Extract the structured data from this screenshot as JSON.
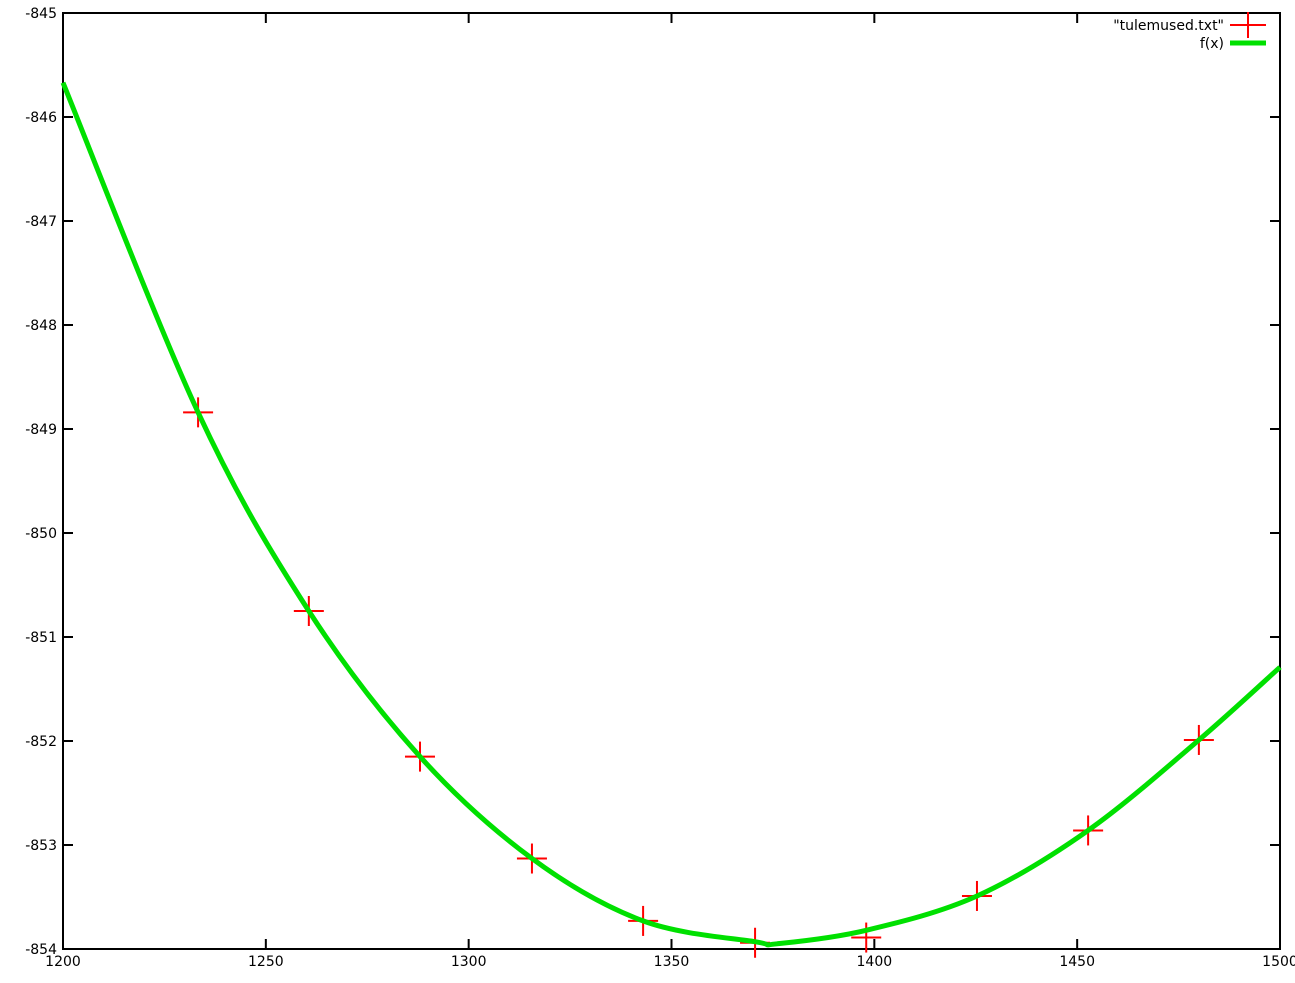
{
  "page": {
    "background": "#ffffff",
    "axis_color": "#000000"
  },
  "chart_data": {
    "type": "scatter",
    "title": "",
    "xlabel": "",
    "ylabel": "",
    "xlim": [
      1200,
      1500
    ],
    "ylim": [
      -854,
      -845
    ],
    "x_ticks": [
      1200,
      1250,
      1300,
      1350,
      1400,
      1450,
      1500
    ],
    "y_ticks": [
      -845,
      -846,
      -847,
      -848,
      -849,
      -850,
      -851,
      -852,
      -853,
      -854
    ],
    "grid": false,
    "legend_position": "top-right-inside",
    "series": [
      {
        "name": "\"tulemused.txt\"",
        "style": "points",
        "marker": "plus",
        "color": "#ff0000",
        "points": [
          [
            1233.3,
            -848.84
          ],
          [
            1260.6,
            -850.75
          ],
          [
            1288.0,
            -852.15
          ],
          [
            1315.6,
            -853.13
          ],
          [
            1343.0,
            -853.73
          ],
          [
            1370.6,
            -853.94
          ],
          [
            1398.0,
            -853.89
          ],
          [
            1425.3,
            -853.49
          ],
          [
            1452.7,
            -852.86
          ],
          [
            1480.0,
            -851.99
          ]
        ]
      },
      {
        "name": "f(x)",
        "style": "line",
        "color": "#00e000",
        "points": [
          [
            1200.0,
            -845.67
          ],
          [
            1233.3,
            -848.84
          ],
          [
            1260.6,
            -850.75
          ],
          [
            1288.0,
            -852.15
          ],
          [
            1315.6,
            -853.13
          ],
          [
            1343.0,
            -853.73
          ],
          [
            1370.6,
            -853.93
          ],
          [
            1376.0,
            -853.95
          ],
          [
            1398.0,
            -853.82
          ],
          [
            1425.3,
            -853.49
          ],
          [
            1452.7,
            -852.86
          ],
          [
            1480.0,
            -851.99
          ],
          [
            1500.0,
            -851.29
          ]
        ]
      }
    ]
  }
}
